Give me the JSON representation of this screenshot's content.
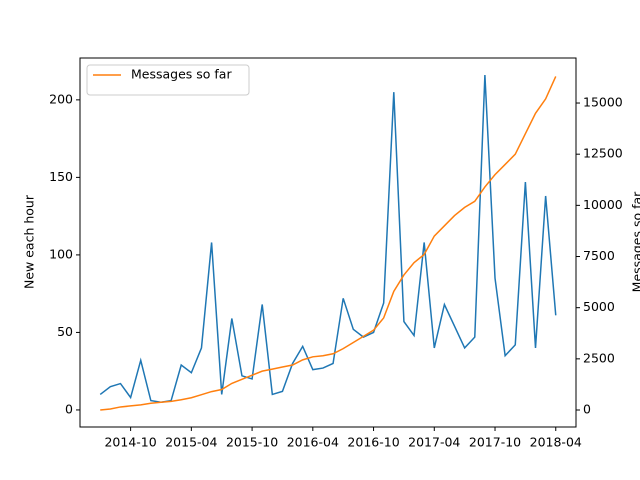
{
  "chart_data": {
    "type": "line",
    "x": [
      "2014-07",
      "2014-08",
      "2014-09",
      "2014-10",
      "2014-11",
      "2014-12",
      "2015-01",
      "2015-02",
      "2015-03",
      "2015-04",
      "2015-05",
      "2015-06",
      "2015-07",
      "2015-08",
      "2015-09",
      "2015-10",
      "2015-11",
      "2015-12",
      "2016-01",
      "2016-02",
      "2016-03",
      "2016-04",
      "2016-05",
      "2016-06",
      "2016-07",
      "2016-08",
      "2016-09",
      "2016-10",
      "2016-11",
      "2016-12",
      "2017-01",
      "2017-02",
      "2017-03",
      "2017-04",
      "2017-05",
      "2017-06",
      "2017-07",
      "2017-08",
      "2017-09",
      "2017-10",
      "2017-11",
      "2017-12",
      "2018-01",
      "2018-02",
      "2018-03",
      "2018-04"
    ],
    "series": [
      {
        "color": "#1f77b4",
        "values": [
          10,
          15,
          17,
          8,
          32,
          6,
          5,
          6,
          29,
          24,
          40,
          108,
          10,
          59,
          22,
          20,
          68,
          10,
          12,
          30,
          41,
          26,
          27,
          30,
          72,
          52,
          47,
          50,
          69,
          205,
          57,
          48,
          108,
          40,
          68,
          54,
          40,
          47,
          216,
          85,
          35,
          42,
          147,
          40,
          138,
          61
        ]
      },
      {
        "name": "Messages so far",
        "color": "#ff7f0e",
        "axis": "y2",
        "values": [
          0,
          50,
          150,
          200,
          250,
          330,
          380,
          420,
          500,
          600,
          750,
          900,
          1000,
          1300,
          1500,
          1700,
          1900,
          2000,
          2100,
          2200,
          2450,
          2600,
          2650,
          2750,
          3000,
          3300,
          3600,
          3900,
          4500,
          5800,
          6600,
          7200,
          7600,
          8500,
          9000,
          9500,
          9900,
          10200,
          10900,
          11500,
          12000,
          12500,
          13500,
          14500,
          15200,
          16300
        ]
      }
    ],
    "xlim": [
      "2014-05",
      "2018-06"
    ],
    "xticks": [
      "2014-10",
      "2015-04",
      "2015-10",
      "2016-04",
      "2016-10",
      "2017-04",
      "2017-10",
      "2018-04"
    ],
    "ylim": [
      -11,
      227
    ],
    "yticks": [
      0,
      50,
      100,
      150,
      200
    ],
    "y2lim": [
      -830,
      17200
    ],
    "y2ticks": [
      0,
      2500,
      5000,
      7500,
      10000,
      12500,
      15000
    ],
    "ylabel": "New each hour",
    "y2label": "Messages so far",
    "legend": "upper left"
  }
}
